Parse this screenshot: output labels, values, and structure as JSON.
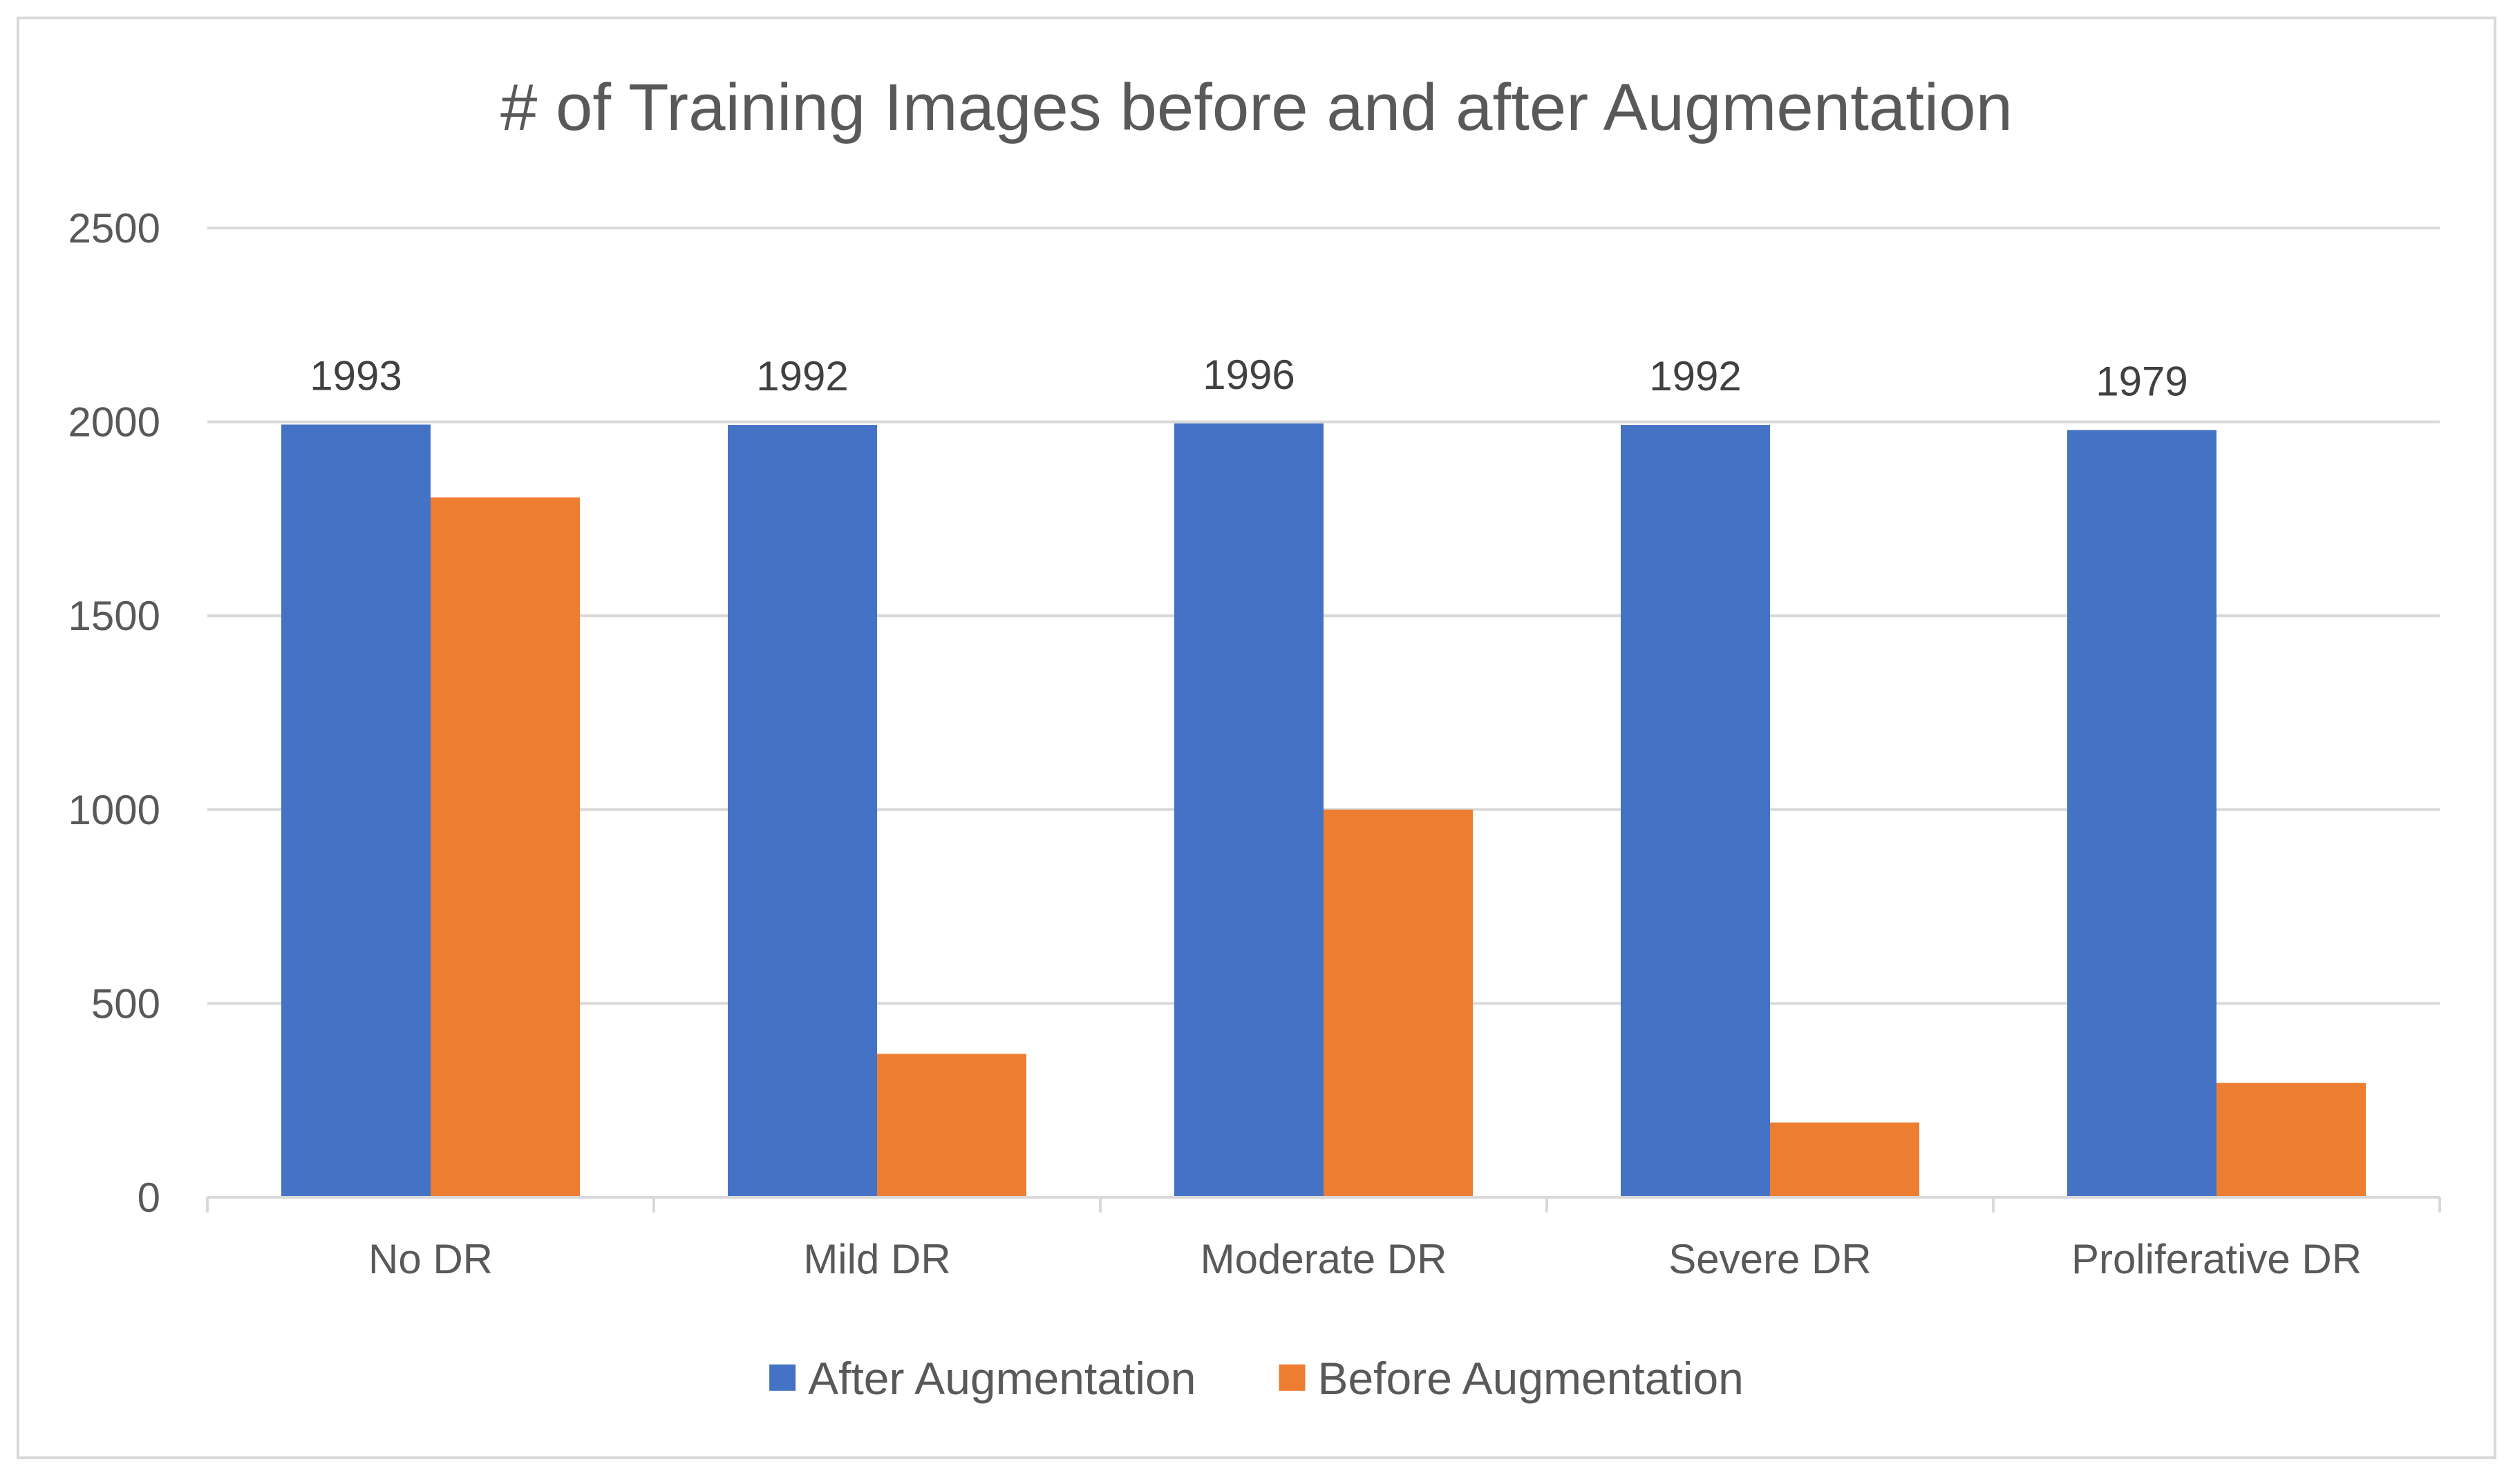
{
  "chart_data": {
    "type": "bar",
    "title": "# of Training Images before and after Augmentation",
    "categories": [
      "No DR",
      "Mild DR",
      "Moderate DR",
      "Severe DR",
      "Proliferative DR"
    ],
    "series": [
      {
        "name": "After Augmentation",
        "color": "#4472C4",
        "values": [
          1993,
          1992,
          1996,
          1992,
          1979
        ],
        "data_labels": [
          "1993",
          "1992",
          "1996",
          "1992",
          "1979"
        ]
      },
      {
        "name": "Before Augmentation",
        "color": "#ED7D31",
        "values": [
          1805,
          370,
          1000,
          193,
          295
        ]
      }
    ],
    "ylim": [
      0,
      2500
    ],
    "yticks": [
      "0",
      "500",
      "1000",
      "1500",
      "2000",
      "2500"
    ],
    "grid": true,
    "legend_position": "bottom",
    "xlabel": "",
    "ylabel": ""
  }
}
